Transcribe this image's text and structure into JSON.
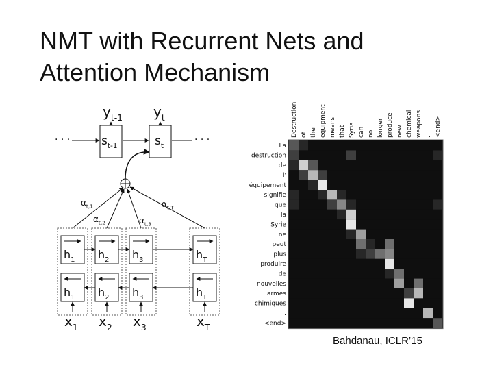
{
  "header": {
    "title_lines": [
      "NMT with Recurrent Nets and",
      "Attention Mechanism"
    ]
  },
  "diagram": {
    "decoder_outputs": [
      {
        "main": "y",
        "sub": "t-1"
      },
      {
        "main": "y",
        "sub": "t"
      }
    ],
    "decoder_states": [
      {
        "main": "s",
        "sub": "t-1"
      },
      {
        "main": "s",
        "sub": "t"
      }
    ],
    "weights": [
      {
        "main": "α",
        "sub": "t,1"
      },
      {
        "main": "α",
        "sub": "t,2"
      },
      {
        "main": "α",
        "sub": "t,3"
      },
      {
        "main": "α",
        "sub": "t,T"
      }
    ],
    "forward_states": [
      {
        "main": "h",
        "sub": "1"
      },
      {
        "main": "h",
        "sub": "2"
      },
      {
        "main": "h",
        "sub": "3"
      },
      {
        "main": "h",
        "sub": "T"
      }
    ],
    "backward_states": [
      {
        "main": "h",
        "sub": "1"
      },
      {
        "main": "h",
        "sub": "2"
      },
      {
        "main": "h",
        "sub": "3"
      },
      {
        "main": "h",
        "sub": "T"
      }
    ],
    "inputs": [
      {
        "main": "x",
        "sub": "1"
      },
      {
        "main": "x",
        "sub": "2"
      },
      {
        "main": "x",
        "sub": "3"
      },
      {
        "main": "x",
        "sub": "T"
      }
    ]
  },
  "attention": {
    "source_words": [
      "Destruction",
      "of",
      "the",
      "equipment",
      "means",
      "that",
      "Syria",
      "can",
      "no",
      "longer",
      "produce",
      "new",
      "chemical",
      "weapons",
      ".",
      "<end>"
    ],
    "target_words": [
      "La",
      "destruction",
      "de",
      "l'",
      "équipement",
      "signifie",
      "que",
      "la",
      "Syrie",
      "ne",
      "peut",
      "plus",
      "produire",
      "de",
      "nouvelles",
      "armes",
      "chimiques",
      ".",
      "<end>"
    ],
    "weights": [
      [
        0.3,
        0.1,
        0,
        0,
        0,
        0,
        0,
        0,
        0,
        0,
        0,
        0,
        0,
        0,
        0,
        0
      ],
      [
        0.2,
        0,
        0,
        0,
        0,
        0,
        0.2,
        0,
        0,
        0,
        0,
        0,
        0,
        0,
        0,
        0.1
      ],
      [
        0.1,
        0.8,
        0.3,
        0,
        0,
        0,
        0,
        0,
        0,
        0,
        0,
        0,
        0,
        0,
        0,
        0
      ],
      [
        0,
        0.2,
        0.7,
        0.2,
        0,
        0,
        0,
        0,
        0,
        0,
        0,
        0,
        0,
        0,
        0,
        0
      ],
      [
        0,
        0,
        0.1,
        0.9,
        0,
        0,
        0,
        0,
        0,
        0,
        0,
        0,
        0,
        0,
        0,
        0
      ],
      [
        0.1,
        0,
        0,
        0.1,
        0.7,
        0.1,
        0,
        0,
        0,
        0,
        0,
        0,
        0,
        0,
        0,
        0
      ],
      [
        0.1,
        0,
        0,
        0,
        0.2,
        0.5,
        0.1,
        0,
        0,
        0,
        0,
        0,
        0,
        0,
        0,
        0.1
      ],
      [
        0,
        0,
        0,
        0,
        0,
        0.1,
        0.8,
        0,
        0,
        0,
        0,
        0,
        0,
        0,
        0,
        0
      ],
      [
        0,
        0,
        0,
        0,
        0,
        0,
        0.9,
        0,
        0,
        0,
        0,
        0,
        0,
        0,
        0,
        0
      ],
      [
        0,
        0,
        0,
        0,
        0,
        0,
        0.1,
        0.6,
        0,
        0,
        0,
        0,
        0,
        0,
        0,
        0
      ],
      [
        0,
        0,
        0,
        0,
        0,
        0,
        0,
        0.4,
        0.1,
        0,
        0.4,
        0,
        0,
        0,
        0,
        0
      ],
      [
        0,
        0,
        0,
        0,
        0,
        0,
        0,
        0.1,
        0.2,
        0.4,
        0.5,
        0,
        0,
        0,
        0,
        0
      ],
      [
        0,
        0,
        0,
        0,
        0,
        0,
        0,
        0,
        0,
        0,
        0.9,
        0,
        0,
        0,
        0,
        0
      ],
      [
        0,
        0,
        0,
        0,
        0,
        0,
        0,
        0,
        0,
        0,
        0.1,
        0.4,
        0,
        0,
        0,
        0
      ],
      [
        0,
        0,
        0,
        0,
        0,
        0,
        0,
        0,
        0,
        0,
        0,
        0.6,
        0,
        0.4,
        0,
        0
      ],
      [
        0,
        0,
        0,
        0,
        0,
        0,
        0,
        0,
        0,
        0,
        0,
        0,
        0.2,
        0.7,
        0,
        0
      ],
      [
        0,
        0,
        0,
        0,
        0,
        0,
        0,
        0,
        0,
        0,
        0,
        0,
        0.9,
        0,
        0,
        0
      ],
      [
        0,
        0,
        0,
        0,
        0,
        0,
        0,
        0,
        0,
        0,
        0,
        0,
        0,
        0,
        0.7,
        0
      ],
      [
        0,
        0,
        0,
        0,
        0,
        0,
        0,
        0,
        0,
        0,
        0,
        0,
        0,
        0,
        0,
        0.3
      ]
    ]
  },
  "citation": "Bahdanau, ICLR’15"
}
